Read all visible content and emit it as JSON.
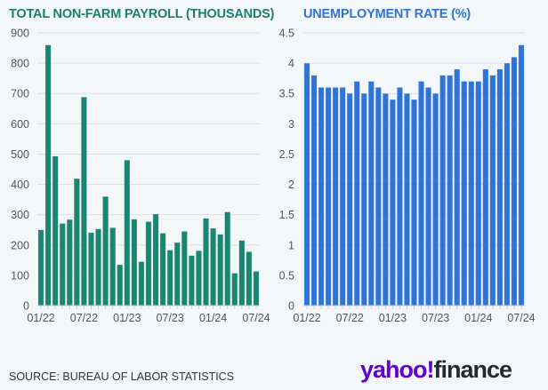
{
  "chart_data": [
    {
      "type": "bar",
      "title": "TOTAL NON-FARM PAYROLL (THOUSANDS)",
      "color": "#1a8570",
      "ylim": [
        0,
        900
      ],
      "yticks": [
        0,
        100,
        200,
        300,
        400,
        500,
        600,
        700,
        800,
        900
      ],
      "xtick_labels": [
        "01/22",
        "07/22",
        "01/23",
        "07/23",
        "01/24",
        "07/24"
      ],
      "xtick_every": 6,
      "categories": [
        "01/22",
        "02/22",
        "03/22",
        "04/22",
        "05/22",
        "06/22",
        "07/22",
        "08/22",
        "09/22",
        "10/22",
        "11/22",
        "12/22",
        "01/23",
        "02/23",
        "03/23",
        "04/23",
        "05/23",
        "06/23",
        "07/23",
        "08/23",
        "09/23",
        "10/23",
        "11/23",
        "12/23",
        "01/24",
        "02/24",
        "03/24",
        "04/24",
        "05/24",
        "06/24",
        "07/24"
      ],
      "values": [
        250,
        860,
        493,
        271,
        284,
        419,
        688,
        241,
        253,
        360,
        257,
        135,
        480,
        285,
        145,
        277,
        302,
        239,
        183,
        208,
        245,
        165,
        181,
        288,
        255,
        235,
        309,
        107,
        215,
        178,
        113
      ],
      "grid": true
    },
    {
      "type": "bar",
      "title": "UNEMPLOYMENT RATE (%)",
      "color": "#2e73d6",
      "ylim": [
        0,
        4.5
      ],
      "yticks": [
        0,
        0.5,
        1,
        1.5,
        2,
        2.5,
        3,
        3.5,
        4,
        4.5
      ],
      "xtick_labels": [
        "01/22",
        "07/22",
        "01/23",
        "07/23",
        "01/24",
        "07/24"
      ],
      "xtick_every": 6,
      "categories": [
        "01/22",
        "02/22",
        "03/22",
        "04/22",
        "05/22",
        "06/22",
        "07/22",
        "08/22",
        "09/22",
        "10/22",
        "11/22",
        "12/22",
        "01/23",
        "02/23",
        "03/23",
        "04/23",
        "05/23",
        "06/23",
        "07/23",
        "08/23",
        "09/23",
        "10/23",
        "11/23",
        "12/23",
        "01/24",
        "02/24",
        "03/24",
        "04/24",
        "05/24",
        "06/24",
        "07/24"
      ],
      "values": [
        4.0,
        3.8,
        3.6,
        3.6,
        3.6,
        3.6,
        3.5,
        3.7,
        3.5,
        3.7,
        3.6,
        3.5,
        3.4,
        3.6,
        3.5,
        3.4,
        3.7,
        3.6,
        3.5,
        3.8,
        3.8,
        3.9,
        3.7,
        3.7,
        3.7,
        3.9,
        3.8,
        3.9,
        4.0,
        4.1,
        4.3
      ],
      "grid": true
    }
  ],
  "footer": {
    "source": "SOURCE: BUREAU OF LABOR STATISTICS",
    "logo_yahoo": "yahoo!",
    "logo_finance": "finance"
  }
}
